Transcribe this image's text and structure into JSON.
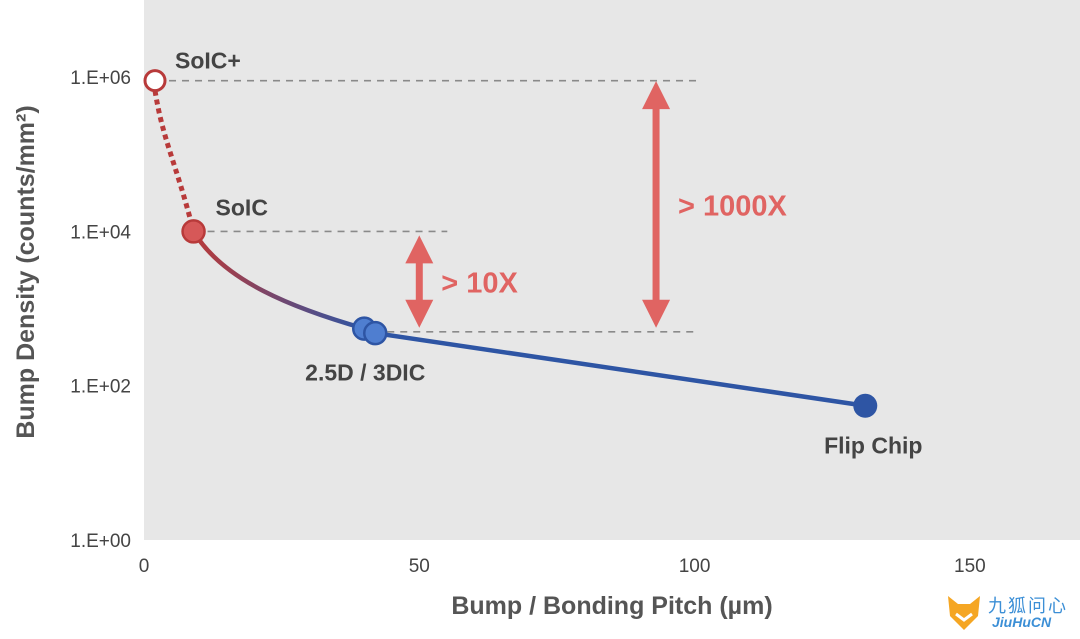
{
  "chart_data": {
    "type": "line",
    "title": "",
    "xlabel": "Bump / Bonding Pitch (µm)",
    "ylabel": "Bump Density (counts/mm²)",
    "xlim": [
      0,
      170
    ],
    "ylim": [
      1,
      10000000
    ],
    "y_scale": "log",
    "x_ticks": [
      "0",
      "50",
      "100",
      "150"
    ],
    "x_tick_values": [
      0,
      50,
      100,
      150
    ],
    "y_ticks": [
      "1.E+00",
      "1.E+02",
      "1.E+04",
      "1.E+06"
    ],
    "y_tick_values": [
      1,
      100,
      10000,
      1000000
    ],
    "grid": false,
    "points": [
      {
        "label": "SoIC+",
        "x": 2,
        "y": 900000
      },
      {
        "label": "SoIC",
        "x": 9,
        "y": 10000
      },
      {
        "label": "2.5D / 3DIC",
        "x": 40,
        "y": 550
      },
      {
        "label": "2.5D / 3DIC",
        "x": 42,
        "y": 480
      },
      {
        "label": "Flip Chip",
        "x": 131,
        "y": 55
      }
    ],
    "annotations": [
      {
        "text": "> 10X",
        "x": 50,
        "from": 500,
        "to": 10000
      },
      {
        "text": "> 1000X",
        "x": 93,
        "from": 500,
        "to": 1000000
      }
    ],
    "colors": {
      "plot_bg": "#e7e7e7",
      "soic_plus": "#b83a3a",
      "soic": "#d65858",
      "interposer": "#4f7ed0",
      "flip_chip": "#2e55a4",
      "arrow": "#e06462",
      "dash": "#8a8a8a"
    }
  },
  "watermark": {
    "cn": "九狐问心",
    "en": "JiuHuCN",
    "icon": "fox-head-icon"
  }
}
